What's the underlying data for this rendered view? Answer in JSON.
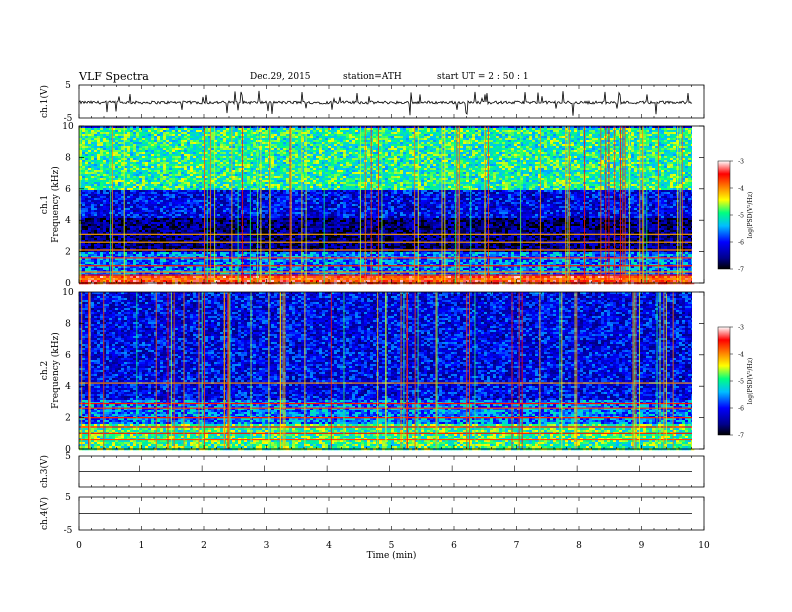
{
  "header": {
    "title": "VLF  Spectra",
    "date": "Dec.29, 2015",
    "station": "station=ATH",
    "start": "start  UT  =   2  : 50 : 1"
  },
  "chart_data": [
    {
      "type": "line",
      "panel": "ch1-waveform",
      "ylabel": "ch.1(V)",
      "ylim": [
        -5,
        5
      ],
      "yticks": [
        "5",
        "-5"
      ],
      "xlim": [
        0,
        10
      ],
      "series": [
        {
          "values_hint": "noisy trace near -0.3 V with many short positive spikes reaching ~3.5 V"
        }
      ]
    },
    {
      "type": "heatmap",
      "panel": "ch1-spectrogram",
      "ylabel": "ch.1",
      "ylabel2": "Frequency  (kHz)",
      "ylim": [
        0,
        10
      ],
      "yticks": [
        "0",
        "2",
        "4",
        "6",
        "8",
        "10"
      ],
      "xlim": [
        0,
        9.8
      ],
      "colorbar": {
        "label": "log(PSD(V²/Hz)",
        "ticks": [
          "-3",
          "-4",
          "-5",
          "-6",
          "-7"
        ],
        "range": [
          -7,
          -3
        ]
      },
      "bands": [
        {
          "from": 0.0,
          "to": 0.5,
          "level": -3.6
        },
        {
          "from": 0.5,
          "to": 2.0,
          "level": -5.6
        },
        {
          "from": 2.0,
          "to": 4.2,
          "level": -6.6
        },
        {
          "from": 4.2,
          "to": 6.0,
          "level": -6.1
        },
        {
          "from": 6.0,
          "to": 10.0,
          "level": -5.0
        }
      ]
    },
    {
      "type": "heatmap",
      "panel": "ch2-spectrogram",
      "ylabel": "ch.2",
      "ylabel2": "Frequency  (kHz)",
      "ylim": [
        0,
        10
      ],
      "yticks": [
        "0",
        "2",
        "4",
        "6",
        "8",
        "10"
      ],
      "xlim": [
        0,
        9.8
      ],
      "colorbar": {
        "label": "log(PSD(V²/Hz)",
        "ticks": [
          "-3",
          "-4",
          "-5",
          "-6",
          "-7"
        ],
        "range": [
          -7,
          -3
        ]
      },
      "bands": [
        {
          "from": 0.0,
          "to": 1.6,
          "level": -4.9
        },
        {
          "from": 1.6,
          "to": 3.2,
          "level": -5.6
        },
        {
          "from": 3.2,
          "to": 10.0,
          "level": -6.1
        }
      ]
    },
    {
      "type": "line",
      "panel": "ch3-waveform",
      "ylabel": "ch.3(V)",
      "ylim": [
        -5,
        5
      ],
      "yticks": [
        "5"
      ],
      "series": [
        {
          "values": [
            0
          ]
        }
      ]
    },
    {
      "type": "line",
      "panel": "ch4-waveform",
      "ylabel": "ch.4(V)",
      "ylim": [
        -5,
        5
      ],
      "yticks": [
        "5",
        "-5"
      ],
      "series": [
        {
          "values": [
            0
          ]
        }
      ]
    }
  ],
  "xaxis": {
    "label": "Time  (min)",
    "ticks": [
      "0",
      "1",
      "2",
      "3",
      "4",
      "5",
      "6",
      "7",
      "8",
      "9",
      "10"
    ],
    "range": [
      0,
      10
    ]
  },
  "colors": {
    "colormap": [
      "#000000",
      "#00008b",
      "#0000ff",
      "#00bfff",
      "#00ff80",
      "#ffff00",
      "#ff8000",
      "#ff0000",
      "#ffffff"
    ]
  }
}
